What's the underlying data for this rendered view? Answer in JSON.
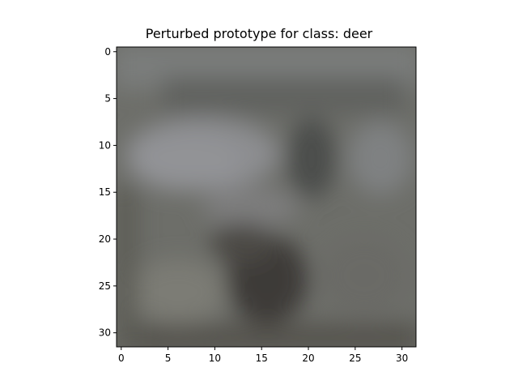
{
  "figure": {
    "title": "Perturbed prototype for class: deer"
  },
  "axes": {
    "x_ticks": [
      "0",
      "5",
      "10",
      "15",
      "20",
      "25",
      "30"
    ],
    "y_ticks": [
      "0",
      "5",
      "10",
      "15",
      "20",
      "25",
      "30"
    ],
    "x_range": [
      -0.5,
      31.5
    ],
    "y_range": [
      -0.5,
      31.5
    ],
    "y_inverted": true
  },
  "image": {
    "description_colors": {
      "frame": "#000000",
      "background": "#ffffff"
    }
  }
}
